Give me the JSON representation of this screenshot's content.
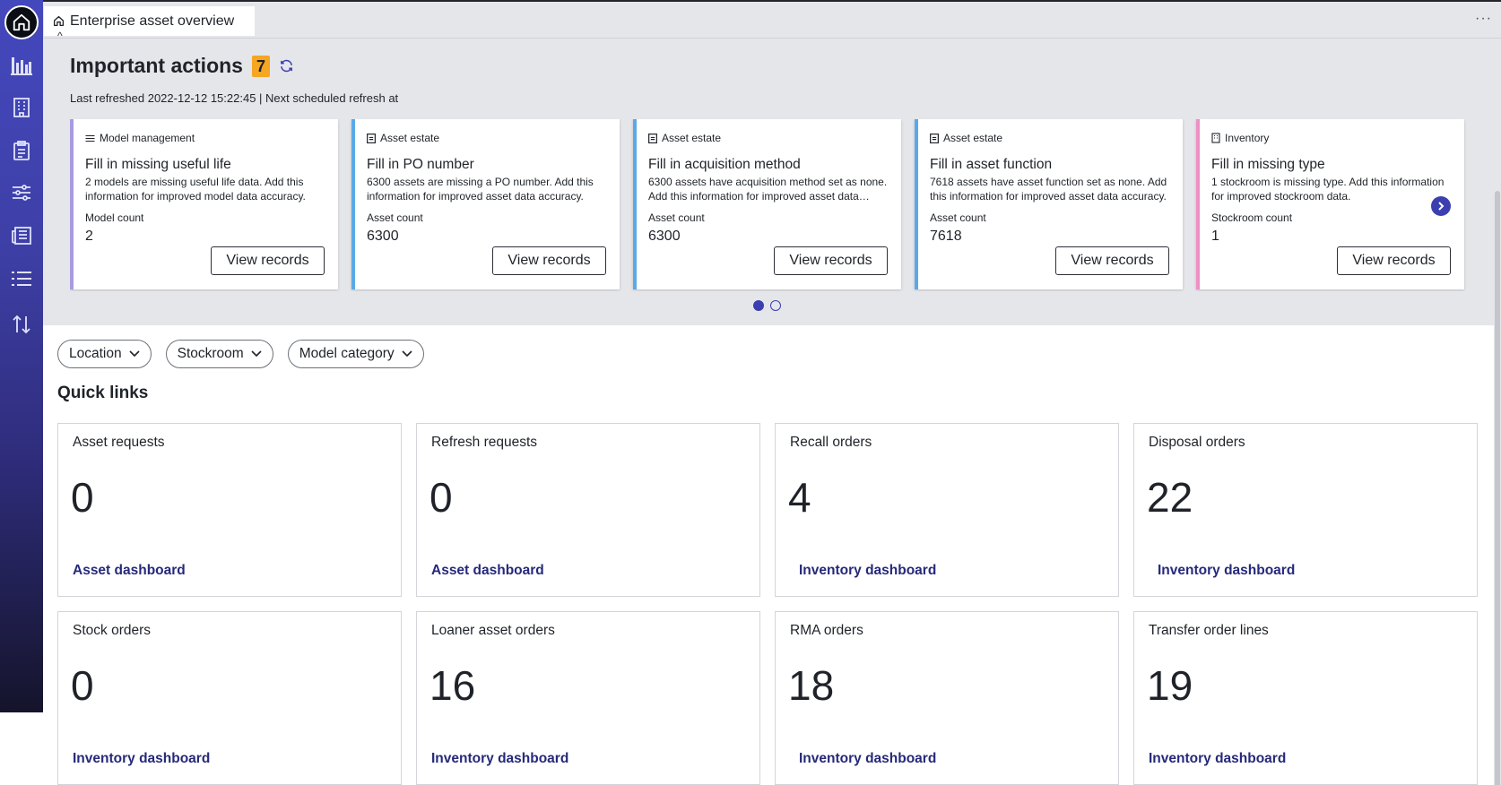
{
  "topbar": {
    "tab_title": "Enterprise asset overview",
    "more_label": "···"
  },
  "sidebar": {
    "items": [
      {
        "icon": "home-icon"
      },
      {
        "icon": "bar-chart-icon"
      },
      {
        "icon": "building-icon"
      },
      {
        "icon": "clipboard-icon"
      },
      {
        "icon": "sliders-icon"
      },
      {
        "icon": "news-icon"
      },
      {
        "icon": "list-icon"
      },
      {
        "icon": "sort-arrows-icon"
      }
    ]
  },
  "important_actions": {
    "title": "Important actions",
    "count": "7",
    "refresh_text": "Last refreshed 2022-12-12 15:22:45 | Next scheduled refresh at",
    "cards": [
      {
        "category": "Model management",
        "title": "Fill in missing useful life",
        "description": "2 models are missing useful life data. Add this information for improved model data accuracy.",
        "metric_label": "Model count",
        "metric_value": "2",
        "button": "View records",
        "accent": "#a99be0"
      },
      {
        "category": "Asset estate",
        "title": "Fill in PO number",
        "description": "6300 assets are missing a PO number. Add this information for improved asset data accuracy.",
        "metric_label": "Asset count",
        "metric_value": "6300",
        "button": "View records",
        "accent": "#5aa9e6"
      },
      {
        "category": "Asset estate",
        "title": "Fill in acquisition method",
        "description": "6300 assets have acquisition method set as none. Add this information for improved asset data…",
        "metric_label": "Asset count",
        "metric_value": "6300",
        "button": "View records",
        "accent": "#5aa9e6"
      },
      {
        "category": "Asset estate",
        "title": "Fill in asset function",
        "description": "7618 assets have asset function set as none. Add this information for improved asset data accuracy.",
        "metric_label": "Asset count",
        "metric_value": "7618",
        "button": "View records",
        "accent": "#5aa9e6"
      },
      {
        "category": "Inventory",
        "title": "Fill in missing type",
        "description": "1 stockroom is missing type. Add this information for improved stockroom data.",
        "metric_label": "Stockroom count",
        "metric_value": "1",
        "button": "View records",
        "accent": "#ef8fc4"
      }
    ],
    "pagination": {
      "pages": 2,
      "current": 1
    }
  },
  "filters": {
    "location": "Location",
    "stockroom": "Stockroom",
    "model_category": "Model category"
  },
  "quick_links": {
    "title": "Quick links",
    "cards": [
      {
        "label": "Asset requests",
        "value": "0",
        "link": "Asset dashboard"
      },
      {
        "label": "Refresh requests",
        "value": "0",
        "link": "Asset dashboard"
      },
      {
        "label": "Recall orders",
        "value": "4",
        "link": "Inventory dashboard"
      },
      {
        "label": "Disposal orders",
        "value": "22",
        "link": "Inventory dashboard"
      },
      {
        "label": "Stock orders",
        "value": "0",
        "link": "Inventory dashboard"
      },
      {
        "label": "Loaner asset orders",
        "value": "16",
        "link": "Inventory dashboard"
      },
      {
        "label": "RMA orders",
        "value": "18",
        "link": "Inventory dashboard"
      },
      {
        "label": "Transfer order lines",
        "value": "19",
        "link": "Inventory dashboard"
      }
    ]
  }
}
